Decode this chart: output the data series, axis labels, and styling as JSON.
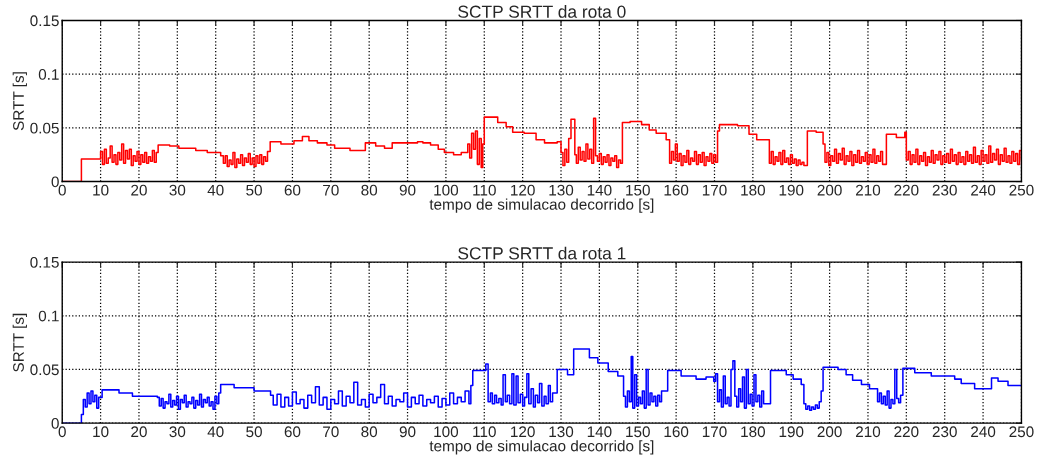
{
  "chart_data": [
    {
      "type": "step",
      "title": "SCTP SRTT da rota 0",
      "xlabel": "tempo de simulacao decorrido [s]",
      "ylabel": "SRTT [s]",
      "xlim": [
        0,
        250
      ],
      "xticks": [
        0,
        10,
        20,
        30,
        40,
        50,
        60,
        70,
        80,
        90,
        100,
        110,
        120,
        130,
        140,
        150,
        160,
        170,
        180,
        190,
        200,
        210,
        220,
        230,
        240,
        250
      ],
      "ylim": [
        0,
        0.15
      ],
      "yticks": [
        0,
        0.05,
        0.1,
        0.15
      ],
      "grid": true,
      "series": [
        {
          "color": "#ff0000",
          "x": [
            0,
            5,
            10,
            10.5,
            11,
            11.5,
            12,
            12.5,
            13,
            13.5,
            14,
            14.5,
            15,
            15.5,
            16,
            16.5,
            17,
            17.5,
            18,
            18.5,
            19,
            19.5,
            20,
            20.5,
            21,
            21.5,
            22,
            22.5,
            23,
            23.5,
            24,
            24.5,
            25,
            28,
            30.4,
            34.8,
            37.8,
            41.3,
            42,
            42.5,
            43,
            43.5,
            44,
            44.5,
            45,
            45.5,
            46,
            46.5,
            47,
            47.5,
            48,
            48.5,
            49,
            49.5,
            50,
            50.5,
            51,
            51.5,
            52,
            52.5,
            53,
            53.5,
            54.2,
            57,
            60.4,
            62.6,
            64.3,
            66.5,
            69,
            71,
            75,
            79,
            81.7,
            84,
            86,
            92.6,
            94,
            96,
            98,
            99.6,
            102,
            104,
            105.7,
            106.2,
            106.7,
            107.2,
            107.7,
            108.2,
            108.7,
            109.2,
            109.6,
            110,
            113.5,
            115.7,
            117.4,
            120.4,
            123.5,
            125.7,
            129,
            130,
            130.5,
            131,
            131.5,
            132,
            132.6,
            133.6,
            134,
            134.5,
            135,
            135.5,
            136,
            136.5,
            137,
            137.5,
            138,
            138.5,
            139,
            139.5,
            140,
            140.5,
            141,
            141.5,
            142,
            142.5,
            143,
            143.5,
            144,
            144.5,
            145,
            145.5,
            146,
            148,
            151,
            153,
            154.8,
            157.4,
            158.3,
            158.8,
            159.3,
            159.8,
            160.3,
            160.8,
            161.3,
            161.8,
            162.3,
            162.8,
            163.3,
            163.8,
            164.3,
            164.8,
            165.3,
            165.8,
            166.3,
            166.8,
            167.3,
            167.8,
            168.3,
            168.8,
            169.3,
            169.8,
            170.3,
            170.8,
            171.3,
            176,
            179,
            181,
            184.3,
            184.8,
            185.3,
            185.8,
            186.3,
            186.8,
            187.3,
            187.8,
            188.3,
            188.8,
            189.3,
            189.8,
            190.3,
            190.8,
            191.3,
            191.8,
            192.3,
            192.8,
            193.3,
            194.2,
            196.5,
            198.3,
            198.8,
            199.3,
            199.8,
            200.3,
            200.8,
            201.3,
            201.8,
            202.3,
            202.8,
            203.3,
            203.8,
            204.3,
            204.8,
            205.3,
            205.8,
            206.3,
            206.8,
            207.3,
            207.8,
            208.3,
            208.8,
            209.3,
            209.8,
            210.3,
            210.8,
            211.3,
            211.8,
            212.3,
            212.8,
            213.3,
            213.8,
            214.8,
            217.4,
            219.6,
            220,
            220.5,
            221,
            221.5,
            222,
            222.5,
            223,
            223.5,
            224,
            224.5,
            225,
            225.5,
            226,
            226.5,
            227,
            227.5,
            228,
            228.5,
            229,
            229.5,
            230,
            230.5,
            231,
            231.5,
            232,
            232.5,
            233,
            233.5,
            234,
            234.5,
            235,
            235.5,
            236,
            236.5,
            237,
            237.5,
            238,
            238.5,
            239,
            239.5,
            240,
            240.5,
            241,
            241.5,
            242,
            242.5,
            243,
            243.5,
            244,
            244.5,
            245,
            245.5,
            246,
            246.5,
            247,
            247.5,
            248,
            248.5,
            249,
            249.5,
            250
          ],
          "values": [
            0,
            0.021,
            0.028,
            0.016,
            0.03,
            0.017,
            0.022,
            0.033,
            0.018,
            0.025,
            0.016,
            0.027,
            0.02,
            0.035,
            0.017,
            0.029,
            0.021,
            0.03,
            0.015,
            0.024,
            0.019,
            0.028,
            0.016,
            0.025,
            0.018,
            0.027,
            0.017,
            0.023,
            0.019,
            0.029,
            0.018,
            0.027,
            0.034,
            0.033,
            0.031,
            0.029,
            0.027,
            0.024,
            0.017,
            0.024,
            0.014,
            0.02,
            0.016,
            0.027,
            0.013,
            0.021,
            0.017,
            0.025,
            0.015,
            0.022,
            0.018,
            0.026,
            0.016,
            0.022,
            0.014,
            0.024,
            0.017,
            0.025,
            0.016,
            0.023,
            0.019,
            0.028,
            0.037,
            0.035,
            0.038,
            0.042,
            0.038,
            0.036,
            0.034,
            0.031,
            0.029,
            0.036,
            0.033,
            0.031,
            0.036,
            0.037,
            0.036,
            0.034,
            0.03,
            0.027,
            0.025,
            0.027,
            0.035,
            0.022,
            0.045,
            0.03,
            0.047,
            0.016,
            0.04,
            0.013,
            0.035,
            0.06,
            0.055,
            0.051,
            0.046,
            0.045,
            0.039,
            0.036,
            0.037,
            0.027,
            0.015,
            0.03,
            0.018,
            0.04,
            0.058,
            0.025,
            0.017,
            0.032,
            0.02,
            0.028,
            0.019,
            0.035,
            0.021,
            0.03,
            0.017,
            0.059,
            0.024,
            0.019,
            0.026,
            0.016,
            0.023,
            0.018,
            0.025,
            0.015,
            0.022,
            0.019,
            0.024,
            0.013,
            0.02,
            0.017,
            0.055,
            0.056,
            0.053,
            0.048,
            0.045,
            0.039,
            0.017,
            0.028,
            0.02,
            0.035,
            0.019,
            0.026,
            0.015,
            0.024,
            0.018,
            0.029,
            0.016,
            0.022,
            0.019,
            0.028,
            0.016,
            0.025,
            0.018,
            0.027,
            0.015,
            0.023,
            0.019,
            0.026,
            0.017,
            0.025,
            0.018,
            0.047,
            0.053,
            0.052,
            0.044,
            0.039,
            0.017,
            0.028,
            0.016,
            0.023,
            0.019,
            0.027,
            0.016,
            0.029,
            0.018,
            0.022,
            0.016,
            0.025,
            0.017,
            0.021,
            0.015,
            0.02,
            0.016,
            0.018,
            0.015,
            0.047,
            0.046,
            0.035,
            0.018,
            0.027,
            0.015,
            0.024,
            0.019,
            0.03,
            0.017,
            0.026,
            0.02,
            0.031,
            0.016,
            0.024,
            0.019,
            0.028,
            0.015,
            0.025,
            0.018,
            0.029,
            0.017,
            0.023,
            0.019,
            0.027,
            0.016,
            0.025,
            0.018,
            0.03,
            0.017,
            0.024,
            0.019,
            0.028,
            0.016,
            0.044,
            0.041,
            0.046,
            0.02,
            0.028,
            0.016,
            0.025,
            0.018,
            0.03,
            0.016,
            0.024,
            0.019,
            0.027,
            0.015,
            0.023,
            0.018,
            0.029,
            0.017,
            0.025,
            0.02,
            0.028,
            0.016,
            0.024,
            0.018,
            0.026,
            0.017,
            0.03,
            0.019,
            0.025,
            0.016,
            0.027,
            0.018,
            0.023,
            0.016,
            0.028,
            0.019,
            0.025,
            0.017,
            0.032,
            0.018,
            0.024,
            0.016,
            0.029,
            0.019,
            0.025,
            0.017,
            0.033,
            0.018,
            0.026,
            0.02,
            0.03,
            0.016,
            0.025,
            0.019,
            0.031,
            0.018,
            0.024,
            0.017,
            0.028,
            0.019,
            0.026,
            0.016,
            0.029,
            0.02
          ]
        }
      ]
    },
    {
      "type": "step",
      "title": "SCTP SRTT da rota 1",
      "xlabel": "tempo de simulacao decorrido [s]",
      "ylabel": "SRTT [s]",
      "xlim": [
        0,
        250
      ],
      "xticks": [
        0,
        10,
        20,
        30,
        40,
        50,
        60,
        70,
        80,
        90,
        100,
        110,
        120,
        130,
        140,
        150,
        160,
        170,
        180,
        190,
        200,
        210,
        220,
        230,
        240,
        250
      ],
      "ylim": [
        0,
        0.15
      ],
      "yticks": [
        0,
        0.05,
        0.1,
        0.15
      ],
      "grid": true,
      "series": [
        {
          "color": "#0000ff",
          "x": [
            0,
            5,
            5.5,
            6,
            6.5,
            7,
            7.5,
            8,
            8.5,
            9,
            9.5,
            10.4,
            14.8,
            18.3,
            24.8,
            25.3,
            25.8,
            26.3,
            26.8,
            27.3,
            27.8,
            28.3,
            28.8,
            29.3,
            29.8,
            30.3,
            30.8,
            31.3,
            31.8,
            32.3,
            32.8,
            33.3,
            33.8,
            34.3,
            34.8,
            35.3,
            35.8,
            36.3,
            36.8,
            37.3,
            37.8,
            38.3,
            38.8,
            39.3,
            39.8,
            40.3,
            40.8,
            41.3,
            44.8,
            50,
            54.3,
            55,
            56,
            57,
            58,
            59,
            60,
            61,
            62,
            63,
            64,
            65,
            66,
            67,
            68,
            69,
            70,
            71,
            72,
            73,
            74,
            75,
            76,
            77,
            78,
            79,
            80,
            81,
            82,
            83,
            84,
            85,
            86,
            87,
            88,
            89,
            90,
            91,
            92,
            93,
            94,
            95,
            96,
            97,
            98,
            99,
            100,
            101,
            102,
            103,
            104,
            105,
            106,
            106.5,
            107,
            110.4,
            111,
            111.6,
            112.1,
            112.7,
            113.2,
            113.8,
            114.4,
            114.9,
            115.5,
            116,
            116.6,
            117.2,
            117.7,
            118.3,
            118.8,
            119.4,
            120,
            120.5,
            121.1,
            121.6,
            122.2,
            122.8,
            123.3,
            123.9,
            124.4,
            125,
            125.6,
            126.1,
            126.7,
            127.2,
            127.8,
            129,
            131.7,
            133.3,
            137.4,
            139.6,
            142.3,
            144.8,
            146.3,
            146.8,
            147.3,
            147.8,
            148.3,
            148.7,
            149.2,
            149.7,
            150.2,
            150.7,
            151.2,
            151.7,
            152.2,
            152.7,
            153.2,
            153.7,
            154.2,
            154.7,
            155.2,
            155.7,
            156.2,
            157.8,
            161.3,
            165.2,
            167.8,
            169.8,
            170.3,
            170.8,
            171.3,
            171.8,
            172.3,
            172.8,
            173.3,
            173.8,
            174.3,
            174.8,
            175.3,
            175.8,
            176.3,
            176.8,
            177.3,
            177.8,
            178.3,
            178.8,
            179.3,
            179.8,
            180.3,
            180.8,
            181.3,
            181.8,
            182.3,
            182.8,
            184.6,
            188.7,
            190.5,
            192.6,
            193.3,
            193.8,
            194.3,
            194.8,
            195.3,
            195.8,
            196.3,
            196.8,
            197.3,
            197.8,
            198.3,
            202.2,
            204.3,
            206,
            208.3,
            210.4,
            212,
            212.5,
            213,
            213.5,
            214,
            214.5,
            215,
            215.5,
            216,
            216.5,
            217,
            217.5,
            218,
            218.5,
            219.1,
            222.2,
            226.5,
            232.6,
            234.3,
            237.8,
            242.2,
            243.9,
            246.5,
            250
          ],
          "values": [
            0,
            0.008,
            0.022,
            0.015,
            0.028,
            0.018,
            0.03,
            0.02,
            0.026,
            0.014,
            0.024,
            0.031,
            0.028,
            0.025,
            0.024,
            0.016,
            0.023,
            0.014,
            0.02,
            0.018,
            0.027,
            0.015,
            0.021,
            0.017,
            0.025,
            0.013,
            0.022,
            0.019,
            0.026,
            0.015,
            0.02,
            0.018,
            0.024,
            0.014,
            0.021,
            0.017,
            0.027,
            0.015,
            0.022,
            0.019,
            0.024,
            0.016,
            0.02,
            0.013,
            0.025,
            0.018,
            0.028,
            0.036,
            0.033,
            0.03,
            0.026,
            0.017,
            0.027,
            0.015,
            0.024,
            0.016,
            0.029,
            0.018,
            0.022,
            0.014,
            0.026,
            0.019,
            0.034,
            0.017,
            0.024,
            0.013,
            0.022,
            0.018,
            0.03,
            0.016,
            0.025,
            0.019,
            0.038,
            0.017,
            0.022,
            0.015,
            0.027,
            0.019,
            0.024,
            0.036,
            0.018,
            0.025,
            0.016,
            0.022,
            0.02,
            0.028,
            0.015,
            0.024,
            0.018,
            0.026,
            0.016,
            0.022,
            0.019,
            0.025,
            0.015,
            0.023,
            0.017,
            0.028,
            0.018,
            0.024,
            0.02,
            0.03,
            0.018,
            0.035,
            0.049,
            0.055,
            0.02,
            0.028,
            0.018,
            0.026,
            0.019,
            0.023,
            0.017,
            0.045,
            0.02,
            0.026,
            0.018,
            0.046,
            0.017,
            0.044,
            0.019,
            0.027,
            0.016,
            0.024,
            0.046,
            0.018,
            0.032,
            0.015,
            0.026,
            0.019,
            0.037,
            0.016,
            0.025,
            0.018,
            0.035,
            0.02,
            0.028,
            0.05,
            0.045,
            0.069,
            0.061,
            0.056,
            0.048,
            0.044,
            0.025,
            0.015,
            0.03,
            0.02,
            0.062,
            0.014,
            0.045,
            0.016,
            0.024,
            0.018,
            0.03,
            0.014,
            0.05,
            0.017,
            0.028,
            0.02,
            0.025,
            0.016,
            0.026,
            0.02,
            0.03,
            0.049,
            0.044,
            0.041,
            0.043,
            0.039,
            0.046,
            0.02,
            0.031,
            0.015,
            0.044,
            0.018,
            0.024,
            0.016,
            0.05,
            0.058,
            0.025,
            0.015,
            0.032,
            0.02,
            0.043,
            0.014,
            0.05,
            0.018,
            0.027,
            0.016,
            0.045,
            0.02,
            0.026,
            0.015,
            0.03,
            0.018,
            0.049,
            0.045,
            0.041,
            0.036,
            0.018,
            0.013,
            0.016,
            0.012,
            0.015,
            0.013,
            0.017,
            0.014,
            0.02,
            0.03,
            0.052,
            0.05,
            0.045,
            0.04,
            0.036,
            0.032,
            0.032,
            0.02,
            0.028,
            0.018,
            0.025,
            0.017,
            0.03,
            0.014,
            0.022,
            0.018,
            0.05,
            0.023,
            0.019,
            0.026,
            0.051,
            0.047,
            0.044,
            0.041,
            0.037,
            0.032,
            0.042,
            0.039,
            0.035,
            0.035
          ]
        }
      ]
    }
  ]
}
